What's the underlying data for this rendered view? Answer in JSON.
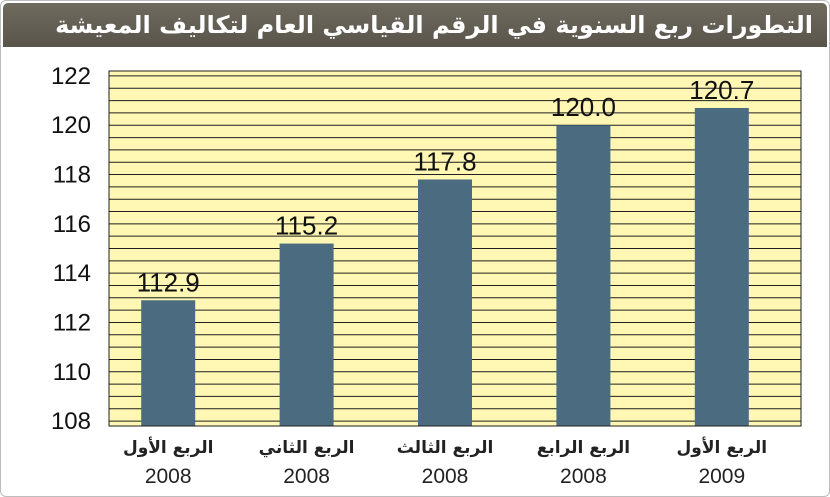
{
  "chart_data": {
    "type": "bar",
    "title": "التطورات ربع السنوية في الرقم القياسي العام لتكاليف المعيشة",
    "categories": [
      {
        "label": "الربع الأول",
        "year": "2008"
      },
      {
        "label": "الربع الثاني",
        "year": "2008"
      },
      {
        "label": "الربع الثالث",
        "year": "2008"
      },
      {
        "label": "الربع الرابع",
        "year": "2008"
      },
      {
        "label": "الربع الأول",
        "year": "2009"
      }
    ],
    "values": [
      112.9,
      115.2,
      117.8,
      120.0,
      120.7
    ],
    "value_labels": [
      "112.9",
      "115.2",
      "117.8",
      "120.0",
      "120.7"
    ],
    "ylim": [
      107.8,
      122.2
    ],
    "yticks": [
      "108",
      "110",
      "112",
      "114",
      "116",
      "118",
      "120",
      "122"
    ],
    "grid": true,
    "colors": {
      "bar": "#4a6b80",
      "plot_background": "#fff7b3",
      "grid": "#1f1f1f",
      "title_bar": "#615d52",
      "title_text": "#ffffff"
    }
  }
}
